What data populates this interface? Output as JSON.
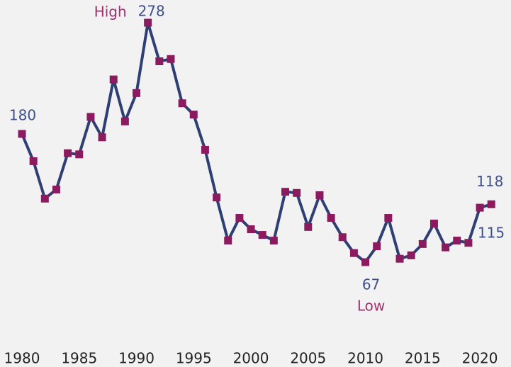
{
  "chart_data": {
    "type": "line",
    "x": [
      1980,
      1981,
      1982,
      1983,
      1984,
      1985,
      1986,
      1987,
      1988,
      1989,
      1990,
      1991,
      1992,
      1993,
      1994,
      1995,
      1996,
      1997,
      1998,
      1999,
      2000,
      2001,
      2002,
      2003,
      2004,
      2005,
      2006,
      2007,
      2008,
      2009,
      2010,
      2011,
      2012,
      2013,
      2014,
      2015,
      2016,
      2017,
      2018,
      2019,
      2020,
      2021
    ],
    "values": [
      180,
      156,
      123,
      131,
      163,
      162,
      195,
      177,
      228,
      191,
      216,
      278,
      244,
      246,
      207,
      197,
      166,
      124,
      86,
      106,
      96,
      91,
      86,
      129,
      128,
      98,
      126,
      106,
      89,
      75,
      67,
      81,
      106,
      70,
      73,
      83,
      101,
      80,
      86,
      84,
      115,
      118
    ],
    "color": "#2e3f73",
    "marker_color": "#8b1a5e",
    "label_color": "#3f4f8a",
    "annotation_color": "#a0306e",
    "annotations": {
      "high": "High",
      "low": "Low"
    },
    "xlim": [
      1978.08,
      2022.72
    ],
    "xticks": [
      1980,
      1985,
      1990,
      1995,
      2000,
      2005,
      2010,
      2015,
      2020
    ],
    "ylim": [
      -25.4,
      298
    ],
    "grid": false
  }
}
